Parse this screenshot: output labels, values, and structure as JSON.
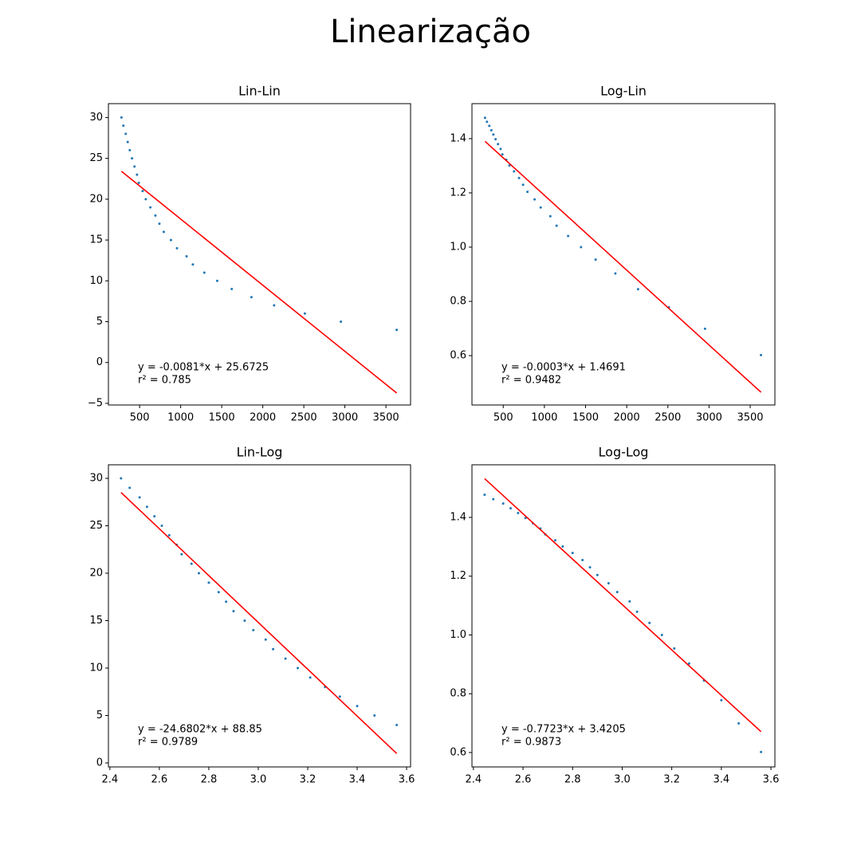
{
  "title": "Linearização",
  "chart_data": [
    {
      "type": "scatter",
      "title": "Lin-Lin",
      "x": [
        279,
        302,
        331,
        355,
        380,
        407,
        437,
        468,
        490,
        537,
        575,
        631,
        692,
        741,
        794,
        881,
        955,
        1072,
        1148,
        1288,
        1445,
        1622,
        1862,
        2138,
        2512,
        2951,
        3631
      ],
      "values": [
        30,
        29,
        28,
        27,
        26,
        25,
        24,
        23,
        22,
        21,
        20,
        19,
        18,
        17,
        16,
        15,
        14,
        13,
        12,
        11,
        10,
        9,
        8,
        7,
        6,
        5,
        4
      ],
      "color": "#1f77b4",
      "fit_line": {
        "x": [
          279,
          3631
        ],
        "values": [
          23.41,
          -3.74
        ],
        "color": "#ff0000"
      },
      "annotations": [
        "y = -0.0081*x + 25.6725",
        "r² = 0.785"
      ],
      "xlim": [
        120,
        3800
      ],
      "ylim": [
        -5.2,
        31.7
      ],
      "xticks": [
        500,
        1000,
        1500,
        2000,
        2500,
        3000,
        3500
      ],
      "yticks": [
        {
          "value": -5,
          "label": "−5"
        },
        0,
        5,
        10,
        15,
        20,
        25,
        30
      ]
    },
    {
      "type": "scatter",
      "title": "Log-Lin",
      "x": [
        279,
        302,
        331,
        355,
        380,
        407,
        437,
        468,
        490,
        537,
        575,
        631,
        692,
        741,
        794,
        881,
        955,
        1072,
        1148,
        1288,
        1445,
        1622,
        1862,
        2138,
        2512,
        2951,
        3631
      ],
      "values": [
        1.477,
        1.462,
        1.447,
        1.431,
        1.415,
        1.398,
        1.38,
        1.362,
        1.342,
        1.322,
        1.301,
        1.279,
        1.255,
        1.23,
        1.204,
        1.176,
        1.146,
        1.114,
        1.079,
        1.041,
        1.0,
        0.954,
        0.903,
        0.845,
        0.778,
        0.699,
        0.602
      ],
      "color": "#1f77b4",
      "fit_line": {
        "x": [
          279,
          3631
        ],
        "values": [
          1.39,
          0.465
        ],
        "color": "#ff0000"
      },
      "annotations": [
        "y = -0.0003*x + 1.4691",
        "r² = 0.9482"
      ],
      "xlim": [
        120,
        3800
      ],
      "ylim": [
        0.418,
        1.529
      ],
      "xticks": [
        500,
        1000,
        1500,
        2000,
        2500,
        3000,
        3500
      ],
      "yticks": [
        0.6,
        0.8,
        {
          "value": 1,
          "label": "1.0"
        },
        1.2,
        1.4
      ]
    },
    {
      "type": "scatter",
      "title": "Lin-Log",
      "x": [
        2.445,
        2.48,
        2.52,
        2.55,
        2.58,
        2.61,
        2.64,
        2.67,
        2.69,
        2.73,
        2.76,
        2.8,
        2.84,
        2.87,
        2.9,
        2.945,
        2.98,
        3.03,
        3.06,
        3.11,
        3.16,
        3.21,
        3.27,
        3.33,
        3.4,
        3.47,
        3.56
      ],
      "values": [
        30,
        29,
        28,
        27,
        26,
        25,
        24,
        23,
        22,
        21,
        20,
        19,
        18,
        17,
        16,
        15,
        14,
        13,
        12,
        11,
        10,
        9,
        8,
        7,
        6,
        5,
        4
      ],
      "color": "#1f77b4",
      "fit_line": {
        "x": [
          2.445,
          3.56
        ],
        "values": [
          28.51,
          0.99
        ],
        "color": "#ff0000"
      },
      "annotations": [
        "y = -24.6802*x + 88.85",
        "r² = 0.9789"
      ],
      "xlim": [
        2.394,
        3.616
      ],
      "ylim": [
        -0.42,
        31.43
      ],
      "xticks": [
        2.4,
        2.6,
        2.8,
        {
          "value": 3,
          "label": "3.0"
        },
        3.2,
        3.4,
        3.6
      ],
      "yticks": [
        0,
        5,
        10,
        15,
        20,
        25,
        30
      ]
    },
    {
      "type": "scatter",
      "title": "Log-Log",
      "x": [
        2.445,
        2.48,
        2.52,
        2.55,
        2.58,
        2.61,
        2.64,
        2.67,
        2.69,
        2.73,
        2.76,
        2.8,
        2.84,
        2.87,
        2.9,
        2.945,
        2.98,
        3.03,
        3.06,
        3.11,
        3.16,
        3.21,
        3.27,
        3.33,
        3.4,
        3.47,
        3.56
      ],
      "values": [
        1.477,
        1.462,
        1.447,
        1.431,
        1.415,
        1.398,
        1.38,
        1.362,
        1.342,
        1.322,
        1.301,
        1.279,
        1.255,
        1.23,
        1.204,
        1.176,
        1.146,
        1.114,
        1.079,
        1.041,
        1.0,
        0.954,
        0.903,
        0.845,
        0.778,
        0.699,
        0.602
      ],
      "color": "#1f77b4",
      "fit_line": {
        "x": [
          2.445,
          3.56
        ],
        "values": [
          1.532,
          0.671
        ],
        "color": "#ff0000"
      },
      "annotations": [
        "y = -0.7723*x + 3.4205",
        "r² = 0.9873"
      ],
      "xlim": [
        2.394,
        3.616
      ],
      "ylim": [
        0.551,
        1.579
      ],
      "xticks": [
        2.4,
        2.6,
        2.8,
        {
          "value": 3,
          "label": "3.0"
        },
        3.2,
        3.4,
        3.6
      ],
      "yticks": [
        0.6,
        0.8,
        {
          "value": 1,
          "label": "1.0"
        },
        1.2,
        1.4
      ]
    }
  ]
}
